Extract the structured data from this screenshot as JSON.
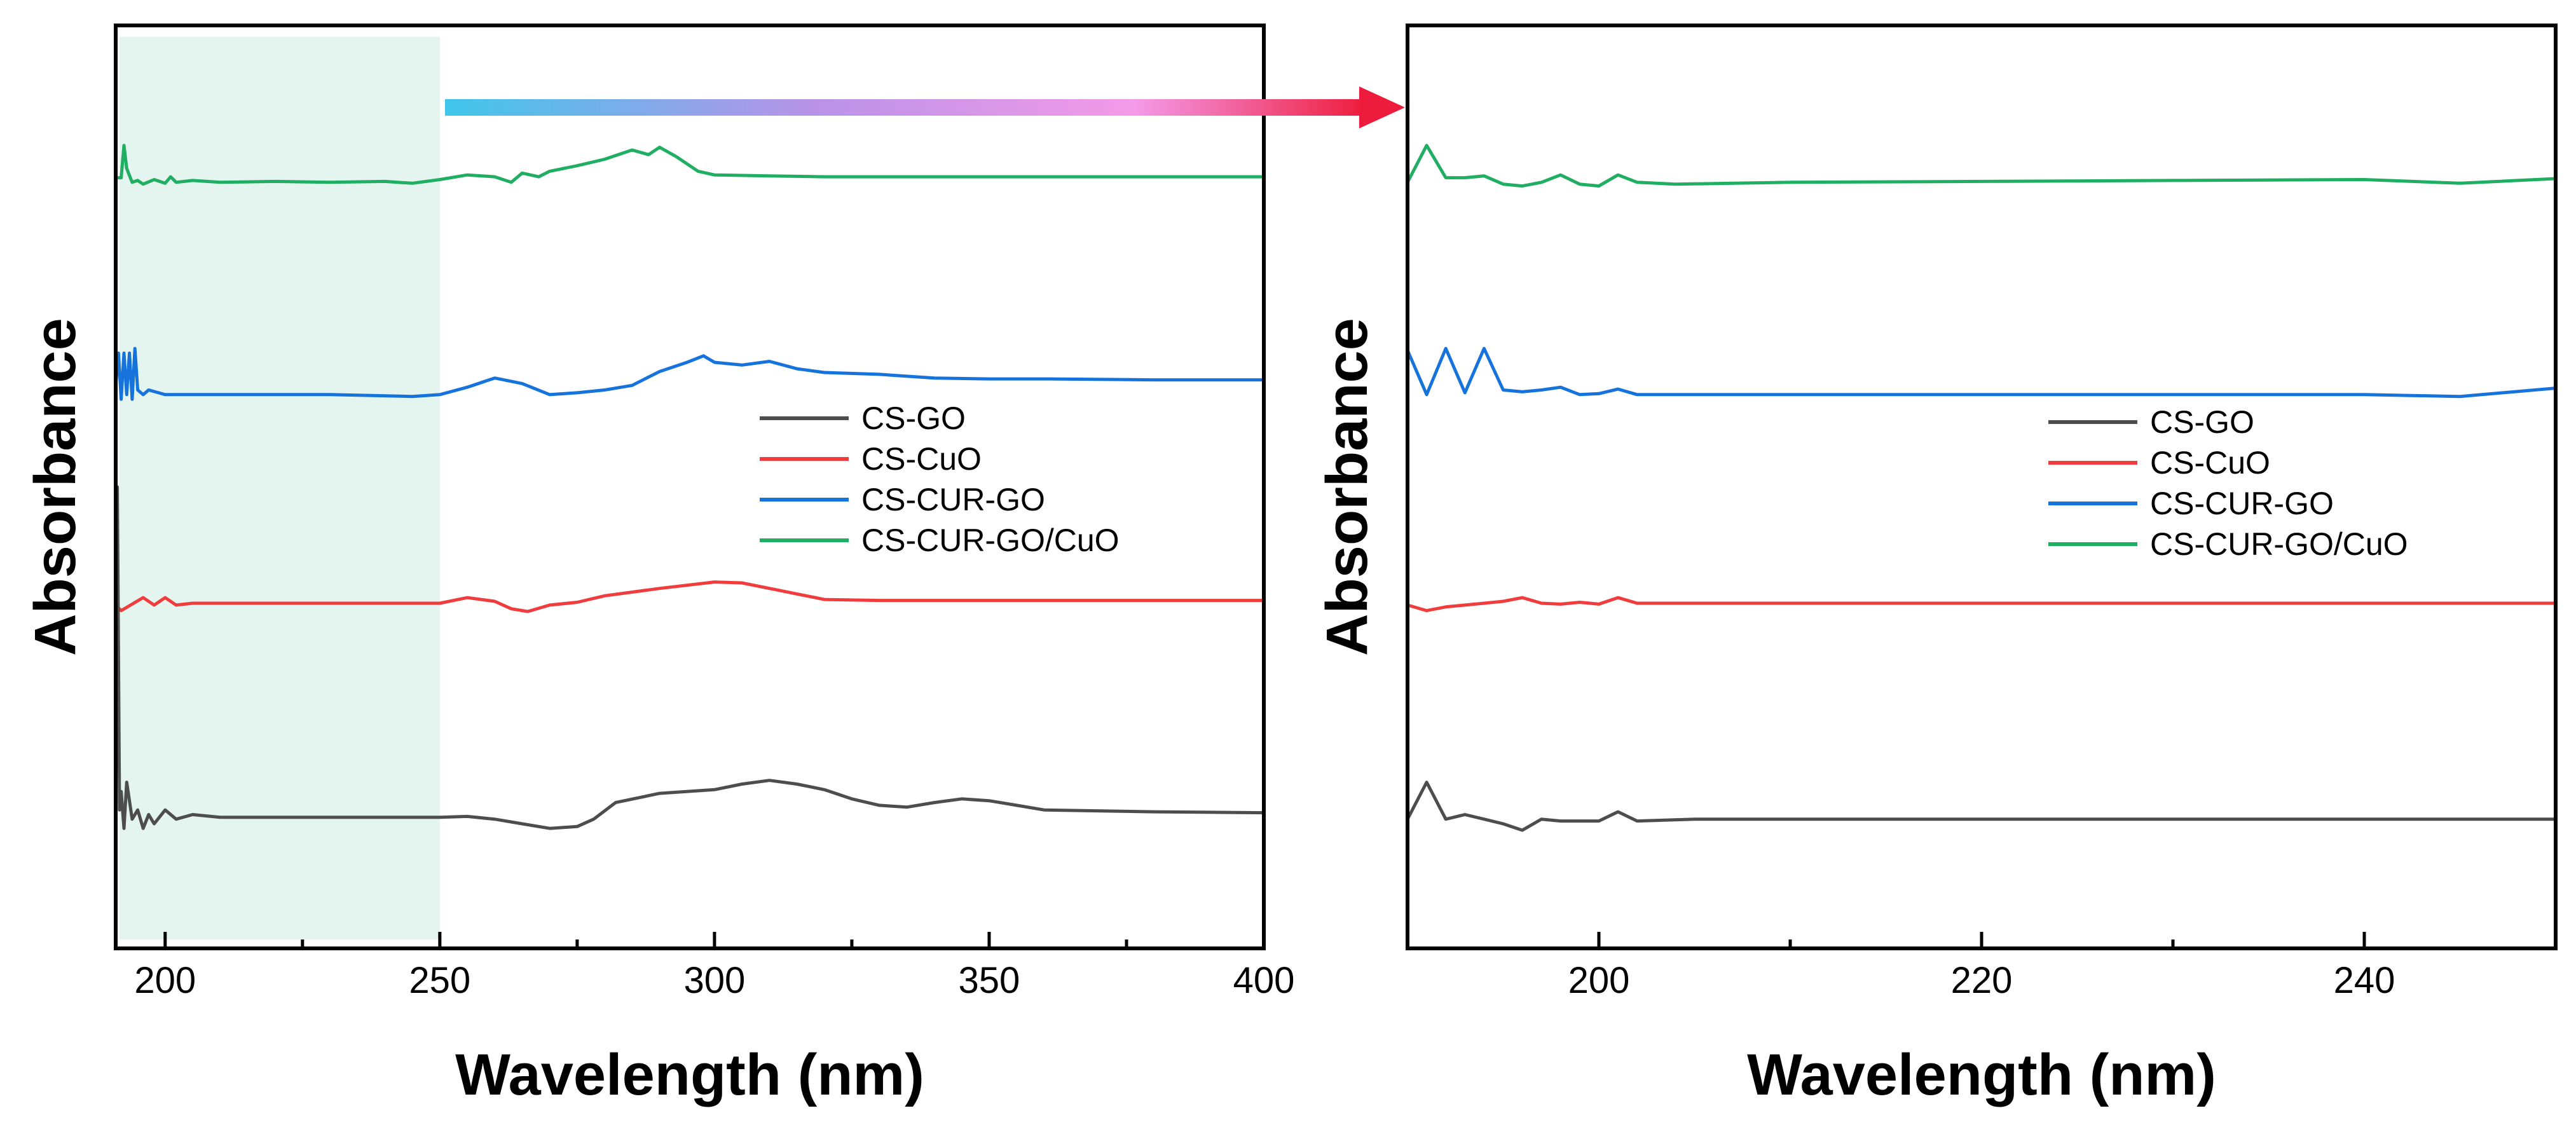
{
  "colors": {
    "CS-GO": "#4d4d4d",
    "CS-CuO": "#f03c3c",
    "CS-CUR-GO": "#1673dc",
    "CS-CUR-GO/CuO": "#1fae62",
    "highlight": "#e3f5ee"
  },
  "annotation": {
    "highlight_range": [
      191,
      250
    ],
    "arrow_gradient": [
      "#3fc6ea",
      "#b993e8",
      "#f49ae8",
      "#ee1c3c"
    ],
    "description": "arrow from highlighted 191-250 nm region of left panel to zoomed right panel"
  },
  "chart_data": [
    {
      "type": "line",
      "panel": "left",
      "xlabel": "Wavelength (nm)",
      "ylabel": "Absorbance",
      "xlim": [
        191,
        400
      ],
      "ylim": [
        0,
        1
      ],
      "xticks": [
        200,
        250,
        300,
        350,
        400
      ],
      "legend": [
        "CS-GO",
        "CS-CuO",
        "CS-CUR-GO",
        "CS-CUR-GO/CuO"
      ],
      "legend_position": "center-right",
      "series": [
        {
          "name": "CS-CUR-GO/CuO",
          "x": [
            191,
            192,
            192.5,
            193,
            194,
            195,
            196,
            198,
            200,
            201,
            202,
            205,
            210,
            220,
            230,
            240,
            245,
            250,
            255,
            260,
            263,
            265,
            268,
            270,
            275,
            280,
            285,
            288,
            290,
            293,
            297,
            300,
            310,
            320,
            330,
            350,
            370,
            400
          ],
          "y": [
            0.835,
            0.835,
            0.87,
            0.845,
            0.83,
            0.832,
            0.828,
            0.833,
            0.829,
            0.836,
            0.83,
            0.832,
            0.83,
            0.831,
            0.83,
            0.831,
            0.829,
            0.833,
            0.838,
            0.836,
            0.83,
            0.84,
            0.836,
            0.842,
            0.848,
            0.855,
            0.865,
            0.86,
            0.868,
            0.858,
            0.842,
            0.838,
            0.837,
            0.836,
            0.836,
            0.836,
            0.836,
            0.836
          ]
        },
        {
          "name": "CS-CUR-GO",
          "x": [
            191,
            191.5,
            192,
            192.5,
            193,
            193.5,
            194,
            194.5,
            195,
            196,
            197,
            200,
            210,
            230,
            245,
            250,
            255,
            260,
            265,
            270,
            275,
            280,
            285,
            290,
            295,
            298,
            300,
            305,
            310,
            315,
            320,
            330,
            340,
            350,
            360,
            380,
            400
          ],
          "y": [
            0.61,
            0.645,
            0.595,
            0.645,
            0.6,
            0.645,
            0.595,
            0.65,
            0.605,
            0.6,
            0.605,
            0.6,
            0.6,
            0.6,
            0.598,
            0.6,
            0.608,
            0.618,
            0.612,
            0.6,
            0.602,
            0.605,
            0.61,
            0.625,
            0.635,
            0.642,
            0.635,
            0.632,
            0.636,
            0.628,
            0.624,
            0.622,
            0.618,
            0.617,
            0.617,
            0.616,
            0.616
          ]
        },
        {
          "name": "CS-CuO",
          "x": [
            191,
            192,
            194,
            196,
            198,
            200,
            202,
            205,
            210,
            230,
            250,
            255,
            260,
            263,
            266,
            270,
            275,
            280,
            290,
            300,
            305,
            310,
            320,
            330,
            360,
            400
          ],
          "y": [
            0.372,
            0.366,
            0.373,
            0.38,
            0.372,
            0.38,
            0.372,
            0.374,
            0.374,
            0.374,
            0.374,
            0.38,
            0.376,
            0.368,
            0.365,
            0.372,
            0.375,
            0.382,
            0.39,
            0.397,
            0.396,
            0.39,
            0.378,
            0.377,
            0.377,
            0.377
          ]
        },
        {
          "name": "CS-GO",
          "x": [
            191,
            191.3,
            191.7,
            192,
            192.5,
            193,
            194,
            195,
            196,
            197,
            198,
            200,
            202,
            205,
            210,
            230,
            250,
            255,
            260,
            265,
            270,
            275,
            278,
            282,
            290,
            300,
            305,
            310,
            315,
            320,
            325,
            330,
            335,
            340,
            345,
            350,
            355,
            360,
            380,
            400
          ],
          "y": [
            0.15,
            0.5,
            0.15,
            0.17,
            0.13,
            0.18,
            0.14,
            0.15,
            0.13,
            0.145,
            0.135,
            0.15,
            0.14,
            0.145,
            0.142,
            0.142,
            0.142,
            0.143,
            0.14,
            0.135,
            0.13,
            0.132,
            0.14,
            0.158,
            0.168,
            0.172,
            0.178,
            0.182,
            0.178,
            0.172,
            0.162,
            0.155,
            0.153,
            0.158,
            0.162,
            0.16,
            0.155,
            0.15,
            0.148,
            0.147
          ]
        }
      ]
    },
    {
      "type": "line",
      "panel": "right",
      "xlabel": "Wavelength (nm)",
      "ylabel": "Absorbance",
      "xlim": [
        190,
        250
      ],
      "ylim": [
        0,
        1
      ],
      "xticks": [
        200,
        220,
        240
      ],
      "legend": [
        "CS-GO",
        "CS-CuO",
        "CS-CUR-GO",
        "CS-CUR-GO/CuO"
      ],
      "legend_position": "center-right",
      "series": [
        {
          "name": "CS-CUR-GO/CuO",
          "x": [
            190,
            191,
            192,
            193,
            194,
            195,
            196,
            197,
            198,
            199,
            200,
            201,
            202,
            203,
            204,
            210,
            220,
            230,
            240,
            245,
            250
          ],
          "y": [
            0.83,
            0.87,
            0.835,
            0.835,
            0.837,
            0.828,
            0.826,
            0.83,
            0.838,
            0.828,
            0.826,
            0.838,
            0.83,
            0.829,
            0.828,
            0.83,
            0.831,
            0.832,
            0.833,
            0.829,
            0.834
          ]
        },
        {
          "name": "CS-CUR-GO",
          "x": [
            190,
            191,
            192,
            193,
            194,
            195,
            196,
            197,
            198,
            199,
            200,
            201,
            202,
            210,
            220,
            230,
            240,
            245,
            250
          ],
          "y": [
            0.648,
            0.6,
            0.65,
            0.602,
            0.65,
            0.605,
            0.603,
            0.605,
            0.608,
            0.6,
            0.601,
            0.606,
            0.6,
            0.6,
            0.6,
            0.6,
            0.6,
            0.598,
            0.607
          ]
        },
        {
          "name": "CS-CuO",
          "x": [
            190,
            191,
            192,
            193,
            194,
            195,
            196,
            197,
            198,
            199,
            200,
            201,
            202,
            205,
            210,
            230,
            250
          ],
          "y": [
            0.372,
            0.366,
            0.37,
            0.372,
            0.374,
            0.376,
            0.38,
            0.374,
            0.373,
            0.375,
            0.373,
            0.38,
            0.374,
            0.374,
            0.374,
            0.374,
            0.374
          ]
        },
        {
          "name": "CS-GO",
          "x": [
            190,
            191,
            192,
            193,
            194,
            195,
            196,
            197,
            198,
            199,
            200,
            201,
            202,
            205,
            210,
            230,
            250
          ],
          "y": [
            0.14,
            0.18,
            0.14,
            0.145,
            0.14,
            0.135,
            0.128,
            0.14,
            0.138,
            0.138,
            0.138,
            0.148,
            0.138,
            0.14,
            0.14,
            0.14,
            0.14
          ]
        }
      ]
    }
  ]
}
